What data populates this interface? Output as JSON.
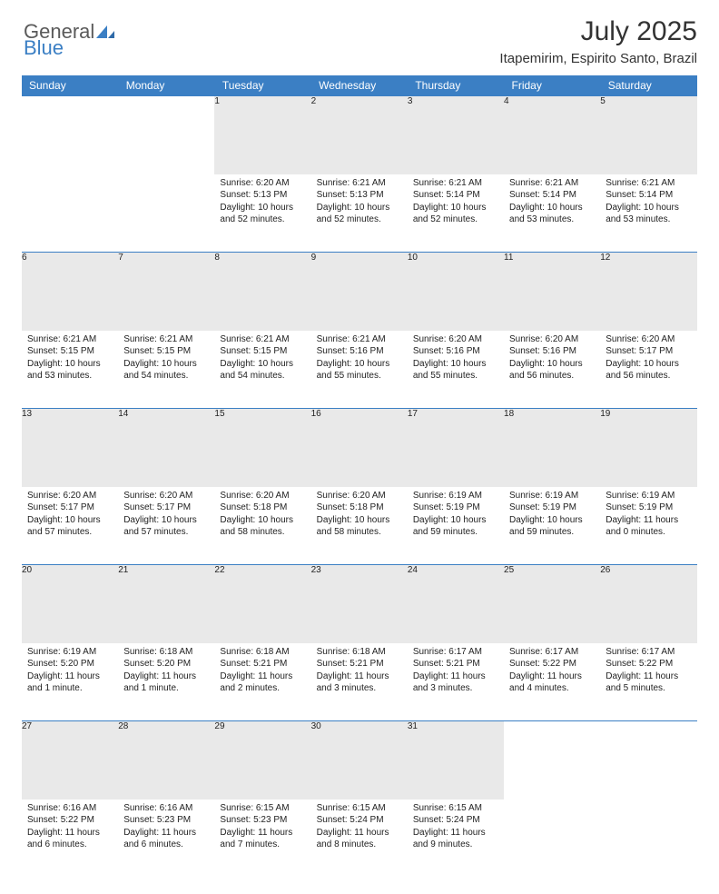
{
  "brand": {
    "word1": "General",
    "word2": "Blue"
  },
  "title": "July 2025",
  "subtitle": "Itapemirim, Espirito Santo, Brazil",
  "colors": {
    "header_bg": "#3b7fc4",
    "header_text": "#ffffff",
    "daynum_bg": "#e9e9e9",
    "daynum_text": "#555555",
    "cell_text": "#222222",
    "rule": "#3b7fc4"
  },
  "weekdays": [
    "Sunday",
    "Monday",
    "Tuesday",
    "Wednesday",
    "Thursday",
    "Friday",
    "Saturday"
  ],
  "weeks": [
    [
      null,
      null,
      {
        "n": "1",
        "sr": "Sunrise: 6:20 AM",
        "ss": "Sunset: 5:13 PM",
        "dl": "Daylight: 10 hours and 52 minutes."
      },
      {
        "n": "2",
        "sr": "Sunrise: 6:21 AM",
        "ss": "Sunset: 5:13 PM",
        "dl": "Daylight: 10 hours and 52 minutes."
      },
      {
        "n": "3",
        "sr": "Sunrise: 6:21 AM",
        "ss": "Sunset: 5:14 PM",
        "dl": "Daylight: 10 hours and 52 minutes."
      },
      {
        "n": "4",
        "sr": "Sunrise: 6:21 AM",
        "ss": "Sunset: 5:14 PM",
        "dl": "Daylight: 10 hours and 53 minutes."
      },
      {
        "n": "5",
        "sr": "Sunrise: 6:21 AM",
        "ss": "Sunset: 5:14 PM",
        "dl": "Daylight: 10 hours and 53 minutes."
      }
    ],
    [
      {
        "n": "6",
        "sr": "Sunrise: 6:21 AM",
        "ss": "Sunset: 5:15 PM",
        "dl": "Daylight: 10 hours and 53 minutes."
      },
      {
        "n": "7",
        "sr": "Sunrise: 6:21 AM",
        "ss": "Sunset: 5:15 PM",
        "dl": "Daylight: 10 hours and 54 minutes."
      },
      {
        "n": "8",
        "sr": "Sunrise: 6:21 AM",
        "ss": "Sunset: 5:15 PM",
        "dl": "Daylight: 10 hours and 54 minutes."
      },
      {
        "n": "9",
        "sr": "Sunrise: 6:21 AM",
        "ss": "Sunset: 5:16 PM",
        "dl": "Daylight: 10 hours and 55 minutes."
      },
      {
        "n": "10",
        "sr": "Sunrise: 6:20 AM",
        "ss": "Sunset: 5:16 PM",
        "dl": "Daylight: 10 hours and 55 minutes."
      },
      {
        "n": "11",
        "sr": "Sunrise: 6:20 AM",
        "ss": "Sunset: 5:16 PM",
        "dl": "Daylight: 10 hours and 56 minutes."
      },
      {
        "n": "12",
        "sr": "Sunrise: 6:20 AM",
        "ss": "Sunset: 5:17 PM",
        "dl": "Daylight: 10 hours and 56 minutes."
      }
    ],
    [
      {
        "n": "13",
        "sr": "Sunrise: 6:20 AM",
        "ss": "Sunset: 5:17 PM",
        "dl": "Daylight: 10 hours and 57 minutes."
      },
      {
        "n": "14",
        "sr": "Sunrise: 6:20 AM",
        "ss": "Sunset: 5:17 PM",
        "dl": "Daylight: 10 hours and 57 minutes."
      },
      {
        "n": "15",
        "sr": "Sunrise: 6:20 AM",
        "ss": "Sunset: 5:18 PM",
        "dl": "Daylight: 10 hours and 58 minutes."
      },
      {
        "n": "16",
        "sr": "Sunrise: 6:20 AM",
        "ss": "Sunset: 5:18 PM",
        "dl": "Daylight: 10 hours and 58 minutes."
      },
      {
        "n": "17",
        "sr": "Sunrise: 6:19 AM",
        "ss": "Sunset: 5:19 PM",
        "dl": "Daylight: 10 hours and 59 minutes."
      },
      {
        "n": "18",
        "sr": "Sunrise: 6:19 AM",
        "ss": "Sunset: 5:19 PM",
        "dl": "Daylight: 10 hours and 59 minutes."
      },
      {
        "n": "19",
        "sr": "Sunrise: 6:19 AM",
        "ss": "Sunset: 5:19 PM",
        "dl": "Daylight: 11 hours and 0 minutes."
      }
    ],
    [
      {
        "n": "20",
        "sr": "Sunrise: 6:19 AM",
        "ss": "Sunset: 5:20 PM",
        "dl": "Daylight: 11 hours and 1 minute."
      },
      {
        "n": "21",
        "sr": "Sunrise: 6:18 AM",
        "ss": "Sunset: 5:20 PM",
        "dl": "Daylight: 11 hours and 1 minute."
      },
      {
        "n": "22",
        "sr": "Sunrise: 6:18 AM",
        "ss": "Sunset: 5:21 PM",
        "dl": "Daylight: 11 hours and 2 minutes."
      },
      {
        "n": "23",
        "sr": "Sunrise: 6:18 AM",
        "ss": "Sunset: 5:21 PM",
        "dl": "Daylight: 11 hours and 3 minutes."
      },
      {
        "n": "24",
        "sr": "Sunrise: 6:17 AM",
        "ss": "Sunset: 5:21 PM",
        "dl": "Daylight: 11 hours and 3 minutes."
      },
      {
        "n": "25",
        "sr": "Sunrise: 6:17 AM",
        "ss": "Sunset: 5:22 PM",
        "dl": "Daylight: 11 hours and 4 minutes."
      },
      {
        "n": "26",
        "sr": "Sunrise: 6:17 AM",
        "ss": "Sunset: 5:22 PM",
        "dl": "Daylight: 11 hours and 5 minutes."
      }
    ],
    [
      {
        "n": "27",
        "sr": "Sunrise: 6:16 AM",
        "ss": "Sunset: 5:22 PM",
        "dl": "Daylight: 11 hours and 6 minutes."
      },
      {
        "n": "28",
        "sr": "Sunrise: 6:16 AM",
        "ss": "Sunset: 5:23 PM",
        "dl": "Daylight: 11 hours and 6 minutes."
      },
      {
        "n": "29",
        "sr": "Sunrise: 6:15 AM",
        "ss": "Sunset: 5:23 PM",
        "dl": "Daylight: 11 hours and 7 minutes."
      },
      {
        "n": "30",
        "sr": "Sunrise: 6:15 AM",
        "ss": "Sunset: 5:24 PM",
        "dl": "Daylight: 11 hours and 8 minutes."
      },
      {
        "n": "31",
        "sr": "Sunrise: 6:15 AM",
        "ss": "Sunset: 5:24 PM",
        "dl": "Daylight: 11 hours and 9 minutes."
      },
      null,
      null
    ]
  ]
}
